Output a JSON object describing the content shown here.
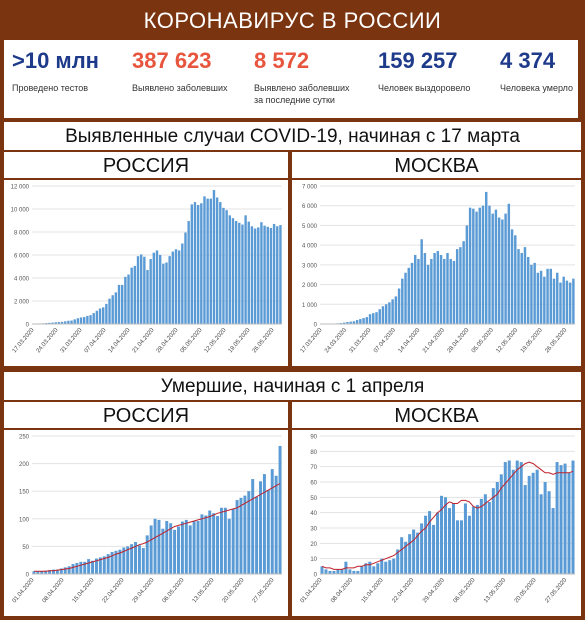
{
  "header": {
    "title": "КОРОНАВИРУС В РОССИИ"
  },
  "stats": [
    {
      "value": ">10 млн",
      "label": "Проведено тестов",
      "color": "#1e3a8a"
    },
    {
      "value": "387 623",
      "label": "Выявлено заболевших",
      "color": "#e8553e"
    },
    {
      "value": "8 572",
      "label": "Выявлено заболевших\nза последние сутки",
      "color": "#e8553e"
    },
    {
      "value": "159 257",
      "label": "Человек выздоровело",
      "color": "#1e3a8a"
    },
    {
      "value": "4 374",
      "label": "Человека умерло",
      "color": "#1e3a8a"
    }
  ],
  "section_cases": {
    "title": "Выявленные случаи COVID-19, начиная с 17 марта",
    "left": "РОССИЯ",
    "right": "МОСКВА"
  },
  "section_deaths": {
    "title": "Умершие, начиная с 1 апреля",
    "left": "РОССИЯ",
    "right": "МОСКВА"
  },
  "colors": {
    "bar": "#5b9bd5",
    "line": "#c0202a",
    "frame": "#7a3410"
  },
  "chart_data": [
    {
      "type": "bar",
      "title": "Россия — выявленные случаи",
      "x_labels": [
        "17.03.2020",
        "24.03.2020",
        "31.03.2020",
        "07.04.2020",
        "14.04.2020",
        "21.04.2020",
        "28.04.2020",
        "05.05.2020",
        "12.05.2020",
        "19.05.2020",
        "26.05.2020"
      ],
      "ylim": [
        0,
        12000
      ],
      "yticks": [
        "0",
        "2 000",
        "4 000",
        "6 000",
        "8 000",
        "10 000",
        "12 000"
      ],
      "values": [
        20,
        30,
        50,
        60,
        80,
        100,
        120,
        150,
        170,
        190,
        230,
        280,
        300,
        400,
        500,
        570,
        600,
        700,
        770,
        950,
        1150,
        1350,
        1450,
        1750,
        2200,
        2500,
        2750,
        3400,
        3400,
        4100,
        4300,
        4900,
        5050,
        5900,
        6050,
        5850,
        4700,
        5650,
        6200,
        6400,
        6000,
        5250,
        5350,
        5900,
        6300,
        6500,
        6400,
        7000,
        7950,
        8950,
        10400,
        10600,
        10350,
        10500,
        11100,
        10900,
        10900,
        11650,
        11000,
        10600,
        10100,
        9900,
        9450,
        9200,
        8950,
        8800,
        8650,
        9450,
        8900,
        8500,
        8300,
        8400,
        8850,
        8550,
        8450,
        8350,
        8700,
        8500,
        8600
      ]
    },
    {
      "type": "bar",
      "title": "Москва — выявленные случаи",
      "x_labels": [
        "17.03.2020",
        "24.03.2020",
        "31.03.2020",
        "07.04.2020",
        "14.04.2020",
        "21.04.2020",
        "28.04.2020",
        "05.05.2020",
        "12.05.2020",
        "19.05.2020",
        "26.05.2020"
      ],
      "ylim": [
        0,
        7000
      ],
      "yticks": [
        "0",
        "1 000",
        "2 000",
        "3 000",
        "4 000",
        "5 000",
        "6 000",
        "7 000"
      ],
      "values": [
        5,
        10,
        15,
        20,
        25,
        33,
        50,
        70,
        100,
        120,
        140,
        200,
        250,
        300,
        350,
        500,
        550,
        600,
        750,
        900,
        1000,
        1100,
        1250,
        1400,
        1800,
        2300,
        2600,
        2850,
        3100,
        3500,
        3300,
        4300,
        3600,
        3000,
        3300,
        3600,
        3700,
        3500,
        3300,
        3600,
        3300,
        3200,
        3800,
        3900,
        4200,
        5000,
        5900,
        5850,
        5700,
        5900,
        6000,
        6700,
        6000,
        5600,
        5800,
        5400,
        5300,
        5600,
        6100,
        4800,
        4500,
        3800,
        3600,
        3900,
        3400,
        3000,
        3100,
        2600,
        2700,
        2400,
        2800,
        2800,
        2300,
        2600,
        2100,
        2400,
        2200,
        2100,
        2300
      ]
    },
    {
      "type": "bar",
      "title": "Россия — умершие",
      "x_labels": [
        "01.04.2020",
        "08.04.2020",
        "15.04.2020",
        "22.04.2020",
        "29.04.2020",
        "06.05.2020",
        "13.05.2020",
        "20.05.2020",
        "27.05.2020"
      ],
      "ylim": [
        0,
        250
      ],
      "yticks": [
        "0",
        "50",
        "100",
        "150",
        "200",
        "250"
      ],
      "values": [
        5,
        5,
        5,
        6,
        7,
        8,
        8,
        10,
        12,
        14,
        18,
        20,
        22,
        22,
        27,
        24,
        28,
        30,
        32,
        36,
        40,
        42,
        44,
        48,
        50,
        54,
        58,
        52,
        47,
        70,
        88,
        100,
        98,
        82,
        96,
        92,
        80,
        86,
        95,
        98,
        88,
        96,
        96,
        108,
        106,
        115,
        110,
        105,
        120,
        120,
        100,
        118,
        134,
        138,
        142,
        150,
        172,
        140,
        168,
        181,
        152,
        190,
        178,
        232
      ],
      "trend": [
        5,
        5,
        5,
        5,
        6,
        6,
        7,
        8,
        9,
        10,
        12,
        14,
        16,
        18,
        20,
        22,
        24,
        26,
        28,
        30,
        33,
        36,
        38,
        41,
        44,
        47,
        50,
        53,
        55,
        58,
        62,
        66,
        70,
        74,
        78,
        82,
        86,
        88,
        90,
        92,
        94,
        96,
        98,
        100,
        102,
        104,
        107,
        110,
        112,
        114,
        116,
        118,
        120,
        124,
        128,
        132,
        136,
        140,
        144,
        148,
        152,
        156,
        160,
        164
      ]
    },
    {
      "type": "bar",
      "title": "Москва — умершие",
      "x_labels": [
        "01.04.2020",
        "08.04.2020",
        "15.04.2020",
        "22.04.2020",
        "29.04.2020",
        "06.05.2020",
        "13.05.2020",
        "20.05.2020",
        "27.05.2020"
      ],
      "ylim": [
        0,
        90
      ],
      "yticks": [
        "0",
        "10",
        "20",
        "30",
        "40",
        "50",
        "60",
        "70",
        "80",
        "90"
      ],
      "values": [
        5,
        3,
        2,
        2,
        3,
        3,
        8,
        3,
        2,
        2,
        5,
        7,
        8,
        5,
        7,
        10,
        8,
        9,
        10,
        16,
        24,
        21,
        26,
        29,
        27,
        33,
        38,
        41,
        32,
        40,
        51,
        50,
        43,
        46,
        35,
        35,
        46,
        38,
        44,
        45,
        49,
        52,
        47,
        56,
        60,
        65,
        73,
        74,
        68,
        74,
        73,
        58,
        64,
        66,
        68,
        52,
        60,
        54,
        43,
        73,
        71,
        72,
        66,
        74
      ],
      "trend": [
        5,
        4,
        4,
        3,
        3,
        3,
        4,
        4,
        4,
        5,
        5,
        6,
        6,
        7,
        8,
        9,
        10,
        11,
        12,
        14,
        16,
        18,
        20,
        22,
        25,
        28,
        30,
        34,
        37,
        40,
        42,
        45,
        47,
        46,
        46,
        48,
        48,
        47,
        44,
        43,
        44,
        46,
        48,
        50,
        52,
        56,
        59,
        62,
        65,
        68,
        70,
        72,
        73,
        72,
        70,
        68,
        66,
        66,
        65,
        66,
        66,
        66,
        66,
        67
      ]
    }
  ]
}
